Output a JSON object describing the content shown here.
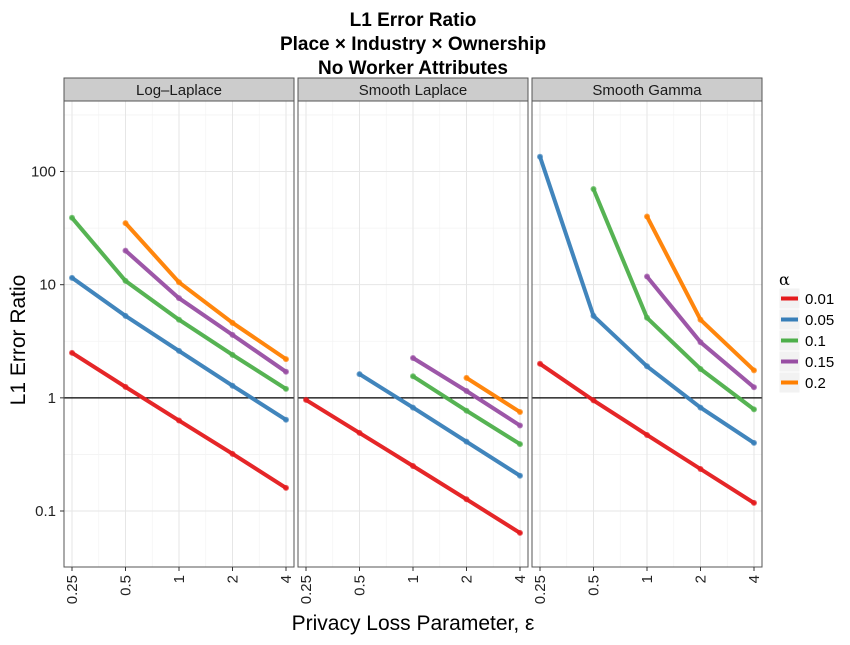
{
  "chart_data": {
    "type": "line",
    "title": [
      "L1 Error Ratio",
      "Place × Industry × Ownership",
      "No Worker Attributes"
    ],
    "xlabel": "Privacy Loss Parameter, ε",
    "ylabel": "L1 Error Ratio",
    "x_scale": "log2",
    "y_scale": "log10",
    "x_ticks": [
      0.25,
      0.5,
      1,
      2,
      4
    ],
    "x_tick_labels": [
      "0.25",
      "0.5",
      "1",
      "2",
      "4"
    ],
    "y_ticks": [
      0.1,
      1,
      10,
      100
    ],
    "y_tick_labels": [
      "0.1",
      "1",
      "10",
      "100"
    ],
    "ylim": [
      0.032,
      420
    ],
    "reference_line": 1,
    "grid": true,
    "legend_title": "α",
    "legend_position": "right",
    "series_colors": {
      "0.01": "#e41a1c",
      "0.05": "#377eb8",
      "0.1": "#4daf4a",
      "0.15": "#984ea3",
      "0.2": "#ff7f00"
    },
    "legend": [
      {
        "label": "0.01",
        "color": "#e41a1c"
      },
      {
        "label": "0.05",
        "color": "#377eb8"
      },
      {
        "label": "0.1",
        "color": "#4daf4a"
      },
      {
        "label": "0.15",
        "color": "#984ea3"
      },
      {
        "label": "0.2",
        "color": "#ff7f00"
      }
    ],
    "panels": [
      {
        "name": "Log–Laplace",
        "series": [
          {
            "alpha": "0.01",
            "x": [
              0.25,
              0.5,
              1,
              2,
              4
            ],
            "y": [
              2.5,
              1.25,
              0.63,
              0.32,
              0.16
            ]
          },
          {
            "alpha": "0.05",
            "x": [
              0.25,
              0.5,
              1,
              2,
              4
            ],
            "y": [
              11.5,
              5.3,
              2.6,
              1.28,
              0.64
            ]
          },
          {
            "alpha": "0.1",
            "x": [
              0.25,
              0.5,
              1,
              2,
              4
            ],
            "y": [
              39,
              10.8,
              4.9,
              2.4,
              1.2
            ]
          },
          {
            "alpha": "0.15",
            "x": [
              0.5,
              1,
              2,
              4
            ],
            "y": [
              20,
              7.6,
              3.6,
              1.7
            ]
          },
          {
            "alpha": "0.2",
            "x": [
              0.5,
              1,
              2,
              4
            ],
            "y": [
              35,
              10.5,
              4.6,
              2.2
            ]
          }
        ]
      },
      {
        "name": "Smooth Laplace",
        "series": [
          {
            "alpha": "0.01",
            "x": [
              0.25,
              0.5,
              1,
              2,
              4
            ],
            "y": [
              0.96,
              0.49,
              0.25,
              0.127,
              0.064
            ]
          },
          {
            "alpha": "0.05",
            "x": [
              0.5,
              1,
              2,
              4
            ],
            "y": [
              1.62,
              0.82,
              0.41,
              0.205
            ]
          },
          {
            "alpha": "0.1",
            "x": [
              1,
              2,
              4
            ],
            "y": [
              1.55,
              0.77,
              0.39
            ]
          },
          {
            "alpha": "0.15",
            "x": [
              1,
              2,
              4
            ],
            "y": [
              2.25,
              1.15,
              0.57
            ]
          },
          {
            "alpha": "0.2",
            "x": [
              2,
              4
            ],
            "y": [
              1.5,
              0.75
            ]
          }
        ]
      },
      {
        "name": "Smooth Gamma",
        "series": [
          {
            "alpha": "0.01",
            "x": [
              0.25,
              0.5,
              1,
              2,
              4
            ],
            "y": [
              2.0,
              0.95,
              0.47,
              0.235,
              0.118
            ]
          },
          {
            "alpha": "0.05",
            "x": [
              0.25,
              0.5,
              1,
              2,
              4
            ],
            "y": [
              135,
              5.3,
              1.9,
              0.82,
              0.4
            ]
          },
          {
            "alpha": "0.1",
            "x": [
              0.5,
              1,
              2,
              4
            ],
            "y": [
              70,
              5.1,
              1.8,
              0.79
            ]
          },
          {
            "alpha": "0.15",
            "x": [
              1,
              2,
              4
            ],
            "y": [
              11.8,
              3.1,
              1.24
            ]
          },
          {
            "alpha": "0.2",
            "x": [
              1,
              2,
              4
            ],
            "y": [
              40,
              4.9,
              1.75
            ]
          }
        ]
      }
    ]
  }
}
